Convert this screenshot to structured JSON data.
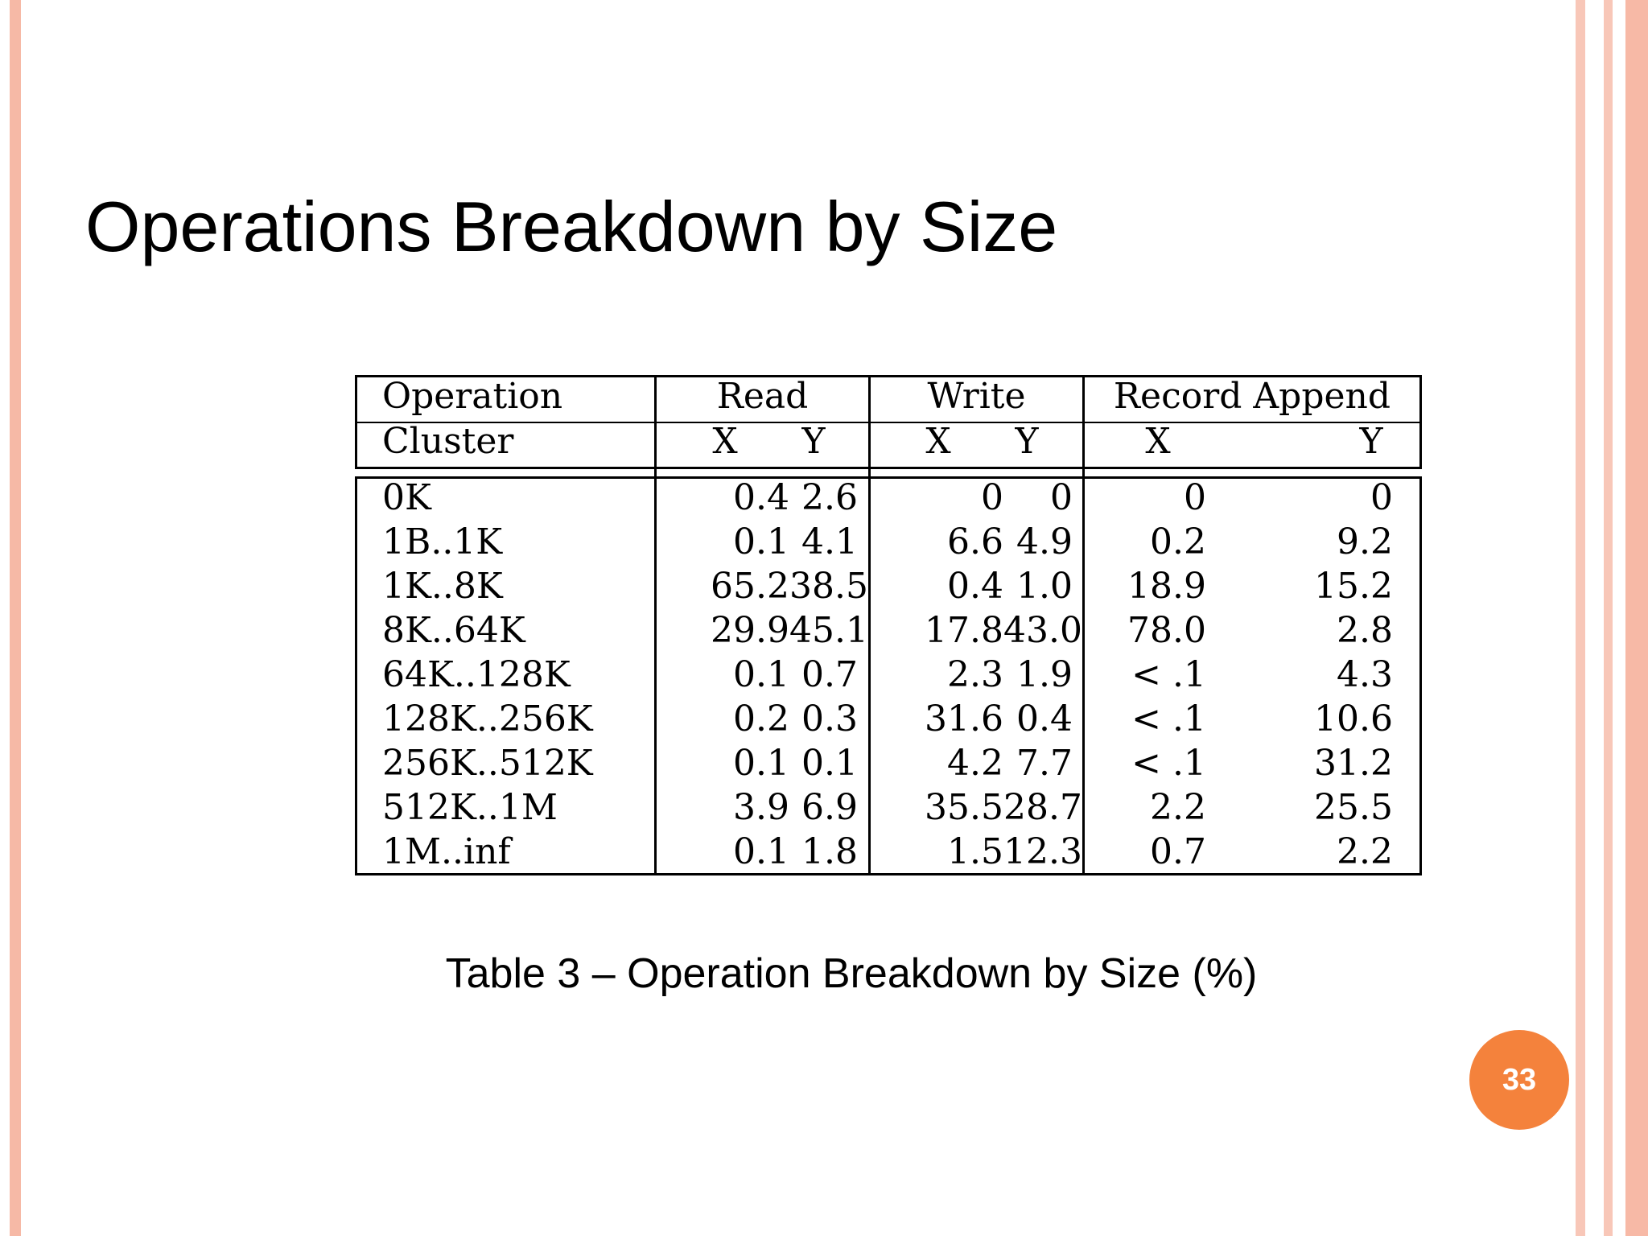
{
  "colors": {
    "border_left": "#f6b9a6",
    "border_right_1": "#f8c7b8",
    "border_right_2": "#f8c7b8",
    "border_right_3": "#f7b9a6",
    "badge": "#f4823c"
  },
  "slide": {
    "title": "Operations Breakdown by Size",
    "caption": "Table 3 – Operation Breakdown by Size (%)",
    "page_number": "33"
  },
  "table": {
    "header_row1": {
      "operation": "Operation",
      "read": "Read",
      "write": "Write",
      "record_append": "Record Append"
    },
    "header_row2": {
      "cluster": "Cluster",
      "read_x": "X",
      "read_y": "Y",
      "write_x": "X",
      "write_y": "Y",
      "append_x": "X",
      "append_y": "Y"
    },
    "rows": [
      {
        "label": "0K",
        "read_x": "0.4",
        "read_y": "2.6",
        "write_x": "0",
        "write_y": "0",
        "append_x": "0",
        "append_y": "0"
      },
      {
        "label": "1B..1K",
        "read_x": "0.1",
        "read_y": "4.1",
        "write_x": "6.6",
        "write_y": "4.9",
        "append_x": "0.2",
        "append_y": "9.2"
      },
      {
        "label": "1K..8K",
        "read_x": "65.2",
        "read_y": "38.5",
        "write_x": "0.4",
        "write_y": "1.0",
        "append_x": "18.9",
        "append_y": "15.2"
      },
      {
        "label": "8K..64K",
        "read_x": "29.9",
        "read_y": "45.1",
        "write_x": "17.8",
        "write_y": "43.0",
        "append_x": "78.0",
        "append_y": "2.8"
      },
      {
        "label": "64K..128K",
        "read_x": "0.1",
        "read_y": "0.7",
        "write_x": "2.3",
        "write_y": "1.9",
        "append_x": "< .1",
        "append_y": "4.3"
      },
      {
        "label": "128K..256K",
        "read_x": "0.2",
        "read_y": "0.3",
        "write_x": "31.6",
        "write_y": "0.4",
        "append_x": "< .1",
        "append_y": "10.6"
      },
      {
        "label": "256K..512K",
        "read_x": "0.1",
        "read_y": "0.1",
        "write_x": "4.2",
        "write_y": "7.7",
        "append_x": "< .1",
        "append_y": "31.2"
      },
      {
        "label": "512K..1M",
        "read_x": "3.9",
        "read_y": "6.9",
        "write_x": "35.5",
        "write_y": "28.7",
        "append_x": "2.2",
        "append_y": "25.5"
      },
      {
        "label": "1M..inf",
        "read_x": "0.1",
        "read_y": "1.8",
        "write_x": "1.5",
        "write_y": "12.3",
        "append_x": "0.7",
        "append_y": "2.2"
      }
    ]
  }
}
